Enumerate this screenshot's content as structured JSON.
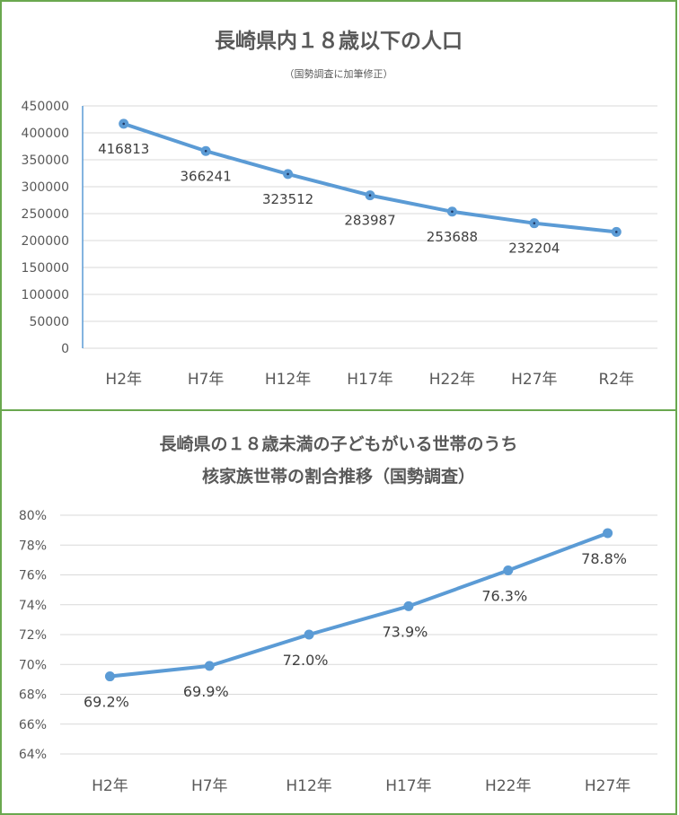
{
  "chart_data": [
    {
      "type": "line",
      "title": "長崎県内１８歳以下の人口",
      "subtitle": "（国勢調査に加筆修正）",
      "categories": [
        "H2年",
        "H7年",
        "H12年",
        "H17年",
        "H22年",
        "H27年",
        "R2年"
      ],
      "series": [
        {
          "values": [
            416813,
            366241,
            323512,
            283987,
            253688,
            232204,
            216000
          ]
        }
      ],
      "data_labels": [
        "416813",
        "366241",
        "323512",
        "283987",
        "253688",
        "232204",
        ""
      ],
      "ylim": [
        0,
        450000
      ],
      "yticks": [
        "0",
        "50000",
        "100000",
        "150000",
        "200000",
        "250000",
        "300000",
        "350000",
        "400000",
        "450000"
      ],
      "grid": true,
      "color": "#5b9bd5"
    },
    {
      "type": "line",
      "title_lines": [
        "長崎県の１８歳未満の子どもがいる世帯のうち",
        "核家族世帯の割合推移（国勢調査）"
      ],
      "categories": [
        "H2年",
        "H7年",
        "H12年",
        "H17年",
        "H22年",
        "H27年"
      ],
      "series": [
        {
          "values": [
            69.2,
            69.9,
            72.0,
            73.9,
            76.3,
            78.8
          ]
        }
      ],
      "data_labels": [
        "69.2%",
        "69.9%",
        "72.0%",
        "73.9%",
        "76.3%",
        "78.8%"
      ],
      "ylim": [
        64,
        80
      ],
      "yticks": [
        "64%",
        "66%",
        "68%",
        "70%",
        "72%",
        "74%",
        "76%",
        "78%",
        "80%"
      ],
      "grid": true,
      "color": "#5b9bd5"
    }
  ]
}
